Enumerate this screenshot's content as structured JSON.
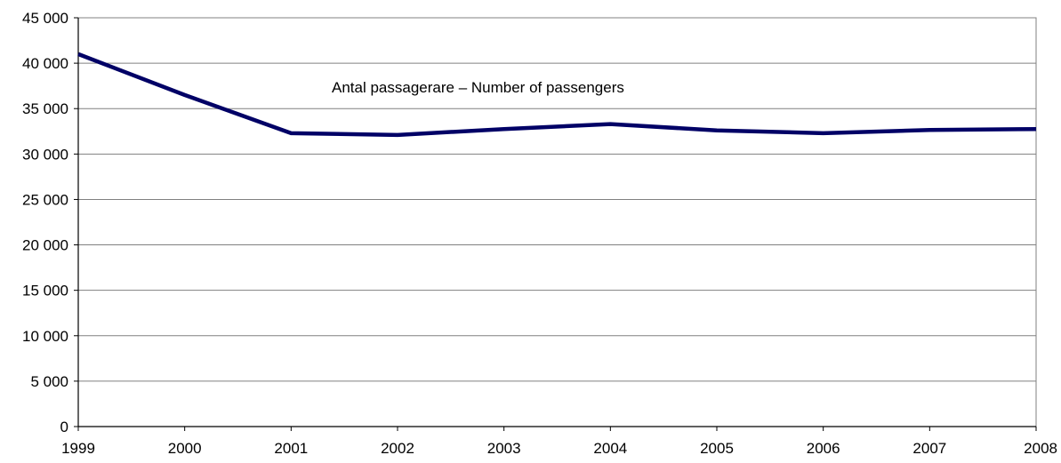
{
  "chart_data": {
    "type": "line",
    "title": "",
    "xlabel": "",
    "ylabel": "",
    "categories": [
      "1999",
      "2000",
      "2001",
      "2002",
      "2003",
      "2004",
      "2005",
      "2006",
      "2007",
      "2008"
    ],
    "series": [
      {
        "values": [
          41000,
          36500,
          32300,
          32100,
          32750,
          33300,
          32600,
          32300,
          32650,
          32750
        ],
        "color": "#000066"
      }
    ],
    "ylim": [
      0,
      45000
    ],
    "yticks": [
      0,
      5000,
      10000,
      15000,
      20000,
      25000,
      30000,
      35000,
      40000,
      45000
    ],
    "ytick_labels": [
      "0",
      "5 000",
      "10 000",
      "15 000",
      "20 000",
      "25 000",
      "30 000",
      "35 000",
      "40 000",
      "45 000"
    ],
    "grid": true,
    "annotation": "Antal passagerare – Number of passengers"
  }
}
